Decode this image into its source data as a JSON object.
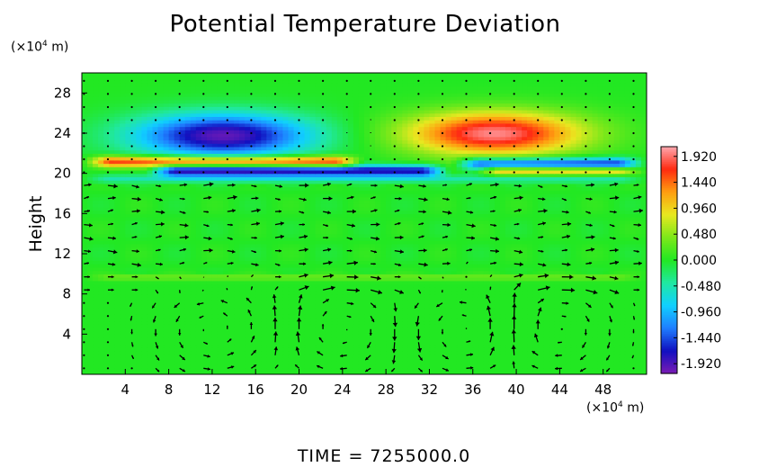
{
  "chart_data": {
    "type": "heatmap",
    "title": "Potential Temperature Deviation",
    "ylabel": "Height",
    "y_units_prefix": "(×10",
    "y_units_exp": "4",
    "y_units_suffix": " m)",
    "x_units_prefix": "(×10",
    "x_units_exp": "4",
    "x_units_suffix": " m)",
    "xlim": [
      0,
      52
    ],
    "ylim": [
      0,
      30
    ],
    "x_ticks": [
      4,
      8,
      12,
      16,
      20,
      24,
      28,
      32,
      36,
      40,
      44,
      48
    ],
    "y_ticks": [
      4,
      8,
      12,
      16,
      20,
      24,
      28
    ],
    "colorbar": {
      "vmin": -2.1,
      "vmax": 2.1,
      "tick_labels": [
        "1.920",
        "1.440",
        "0.960",
        "0.480",
        "0.000",
        "-0.480",
        "-0.960",
        "-1.440",
        "-1.920"
      ],
      "tick_values": [
        1.92,
        1.44,
        0.96,
        0.48,
        0.0,
        -0.48,
        -0.96,
        -1.44,
        -1.92
      ]
    },
    "field_features": [
      {
        "kind": "anomaly",
        "x_center": 13,
        "y_center": 23.8,
        "x_radius": 12,
        "y_radius": 3.2,
        "value": -2.0
      },
      {
        "kind": "anomaly",
        "x_center": 38,
        "y_center": 24.0,
        "x_radius": 12,
        "y_radius": 3.2,
        "value": 2.0
      },
      {
        "kind": "band",
        "y_center": 21.2,
        "half_width": 0.55,
        "x_from": 0,
        "x_to": 26,
        "value": 1.7
      },
      {
        "kind": "band",
        "y_center": 20.3,
        "half_width": 0.55,
        "x_from": 6,
        "x_to": 34,
        "value": -1.8
      },
      {
        "kind": "band",
        "y_center": 21.0,
        "half_width": 0.6,
        "x_from": 34,
        "x_to": 52,
        "value": -1.6
      },
      {
        "kind": "band",
        "y_center": 20.3,
        "half_width": 0.45,
        "x_from": 36,
        "x_to": 52,
        "value": 1.2
      },
      {
        "kind": "band",
        "y_center": 19.5,
        "half_width": 0.4,
        "x_from": 0,
        "x_to": 52,
        "value": -0.5
      },
      {
        "kind": "band",
        "y_center": 9.7,
        "half_width": 0.3,
        "x_from": 0,
        "x_to": 52,
        "value": 0.35
      }
    ],
    "vector_field": {
      "spacing_x": 2.2,
      "spacing_y": 1.3,
      "upper_cells": [
        {
          "x_center": 12,
          "y_center": 24,
          "x_radius": 10,
          "y_radius": 5,
          "strength": 0.25
        },
        {
          "x_center": 38,
          "y_center": 24,
          "x_radius": 10,
          "y_radius": 5,
          "strength": -0.25
        }
      ],
      "mid_flow": {
        "y_from": 10.5,
        "y_to": 19,
        "speed": 0.9
      },
      "lower_cells": [
        {
          "x_center": 12,
          "y_center": 4.5,
          "x_radius": 6,
          "y_radius": 4.5,
          "strength": 1.0
        },
        {
          "x_center": 24,
          "y_center": 4.5,
          "x_radius": 5,
          "y_radius": 4.5,
          "strength": -1.0
        },
        {
          "x_center": 35,
          "y_center": 4.5,
          "x_radius": 5,
          "y_radius": 4.5,
          "strength": 1.0
        },
        {
          "x_center": 44,
          "y_center": 4.5,
          "x_radius": 5,
          "y_radius": 4.5,
          "strength": -1.0
        }
      ]
    }
  },
  "time_label": "TIME  =  7255000.0",
  "colors": {
    "background_field": "#22e822",
    "colormap": [
      "#7a1bb5",
      "#1010c0",
      "#1f7fff",
      "#10d0ff",
      "#20e8a0",
      "#22e822",
      "#7ee81a",
      "#e8e820",
      "#ff9d10",
      "#ff2a10",
      "#ffa8b0"
    ],
    "arrow": "#000000"
  }
}
